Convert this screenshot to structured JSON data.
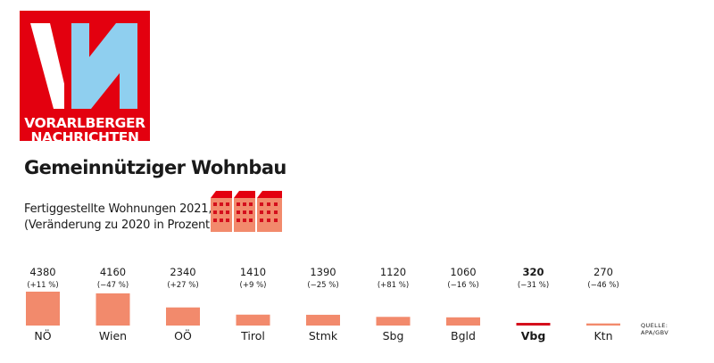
{
  "logo": {
    "alt": "VN",
    "line1": "VORARLBERGER",
    "line2": "NACHRICHTEN",
    "colors": {
      "red": "#e3000f",
      "blue": "#8fcfef",
      "white": "#ffffff"
    }
  },
  "header": {
    "title": "Gemeinnütziger Wohnbau",
    "subtitle_line1": "Fertiggestellte Wohnungen 2021,",
    "subtitle_line2": "(Veränderung zu 2020 in Prozent)",
    "icon": "apartment-building-icon"
  },
  "source": {
    "line1": "QUELLE:",
    "line2": "APA/GBV"
  },
  "chart_data": {
    "type": "bar",
    "categories": [
      "NÖ",
      "Wien",
      "OÖ",
      "Tirol",
      "Stmk",
      "Sbg",
      "Bgld",
      "Vbg",
      "Ktn"
    ],
    "values": [
      4380,
      4160,
      2340,
      1410,
      1390,
      1120,
      1060,
      320,
      270
    ],
    "value_labels": [
      "4380",
      "4160",
      "2340",
      "1410",
      "1390",
      "1120",
      "1060",
      "320",
      "270"
    ],
    "change_labels": [
      "(+11 %)",
      "(−47 %)",
      "(+27 %)",
      "(+9 %)",
      "(−25 %)",
      "(+81 %)",
      "(−16 %)",
      "(−31 %)",
      "(−46 %)"
    ],
    "highlight": "Vbg",
    "colors": {
      "bar": "#f28a6c",
      "highlight": "#d40f1c",
      "text": "#1a1a1a"
    },
    "xlabel": "",
    "ylabel": "",
    "ylim": [
      0,
      4380
    ],
    "grid": false,
    "legend": "none"
  }
}
